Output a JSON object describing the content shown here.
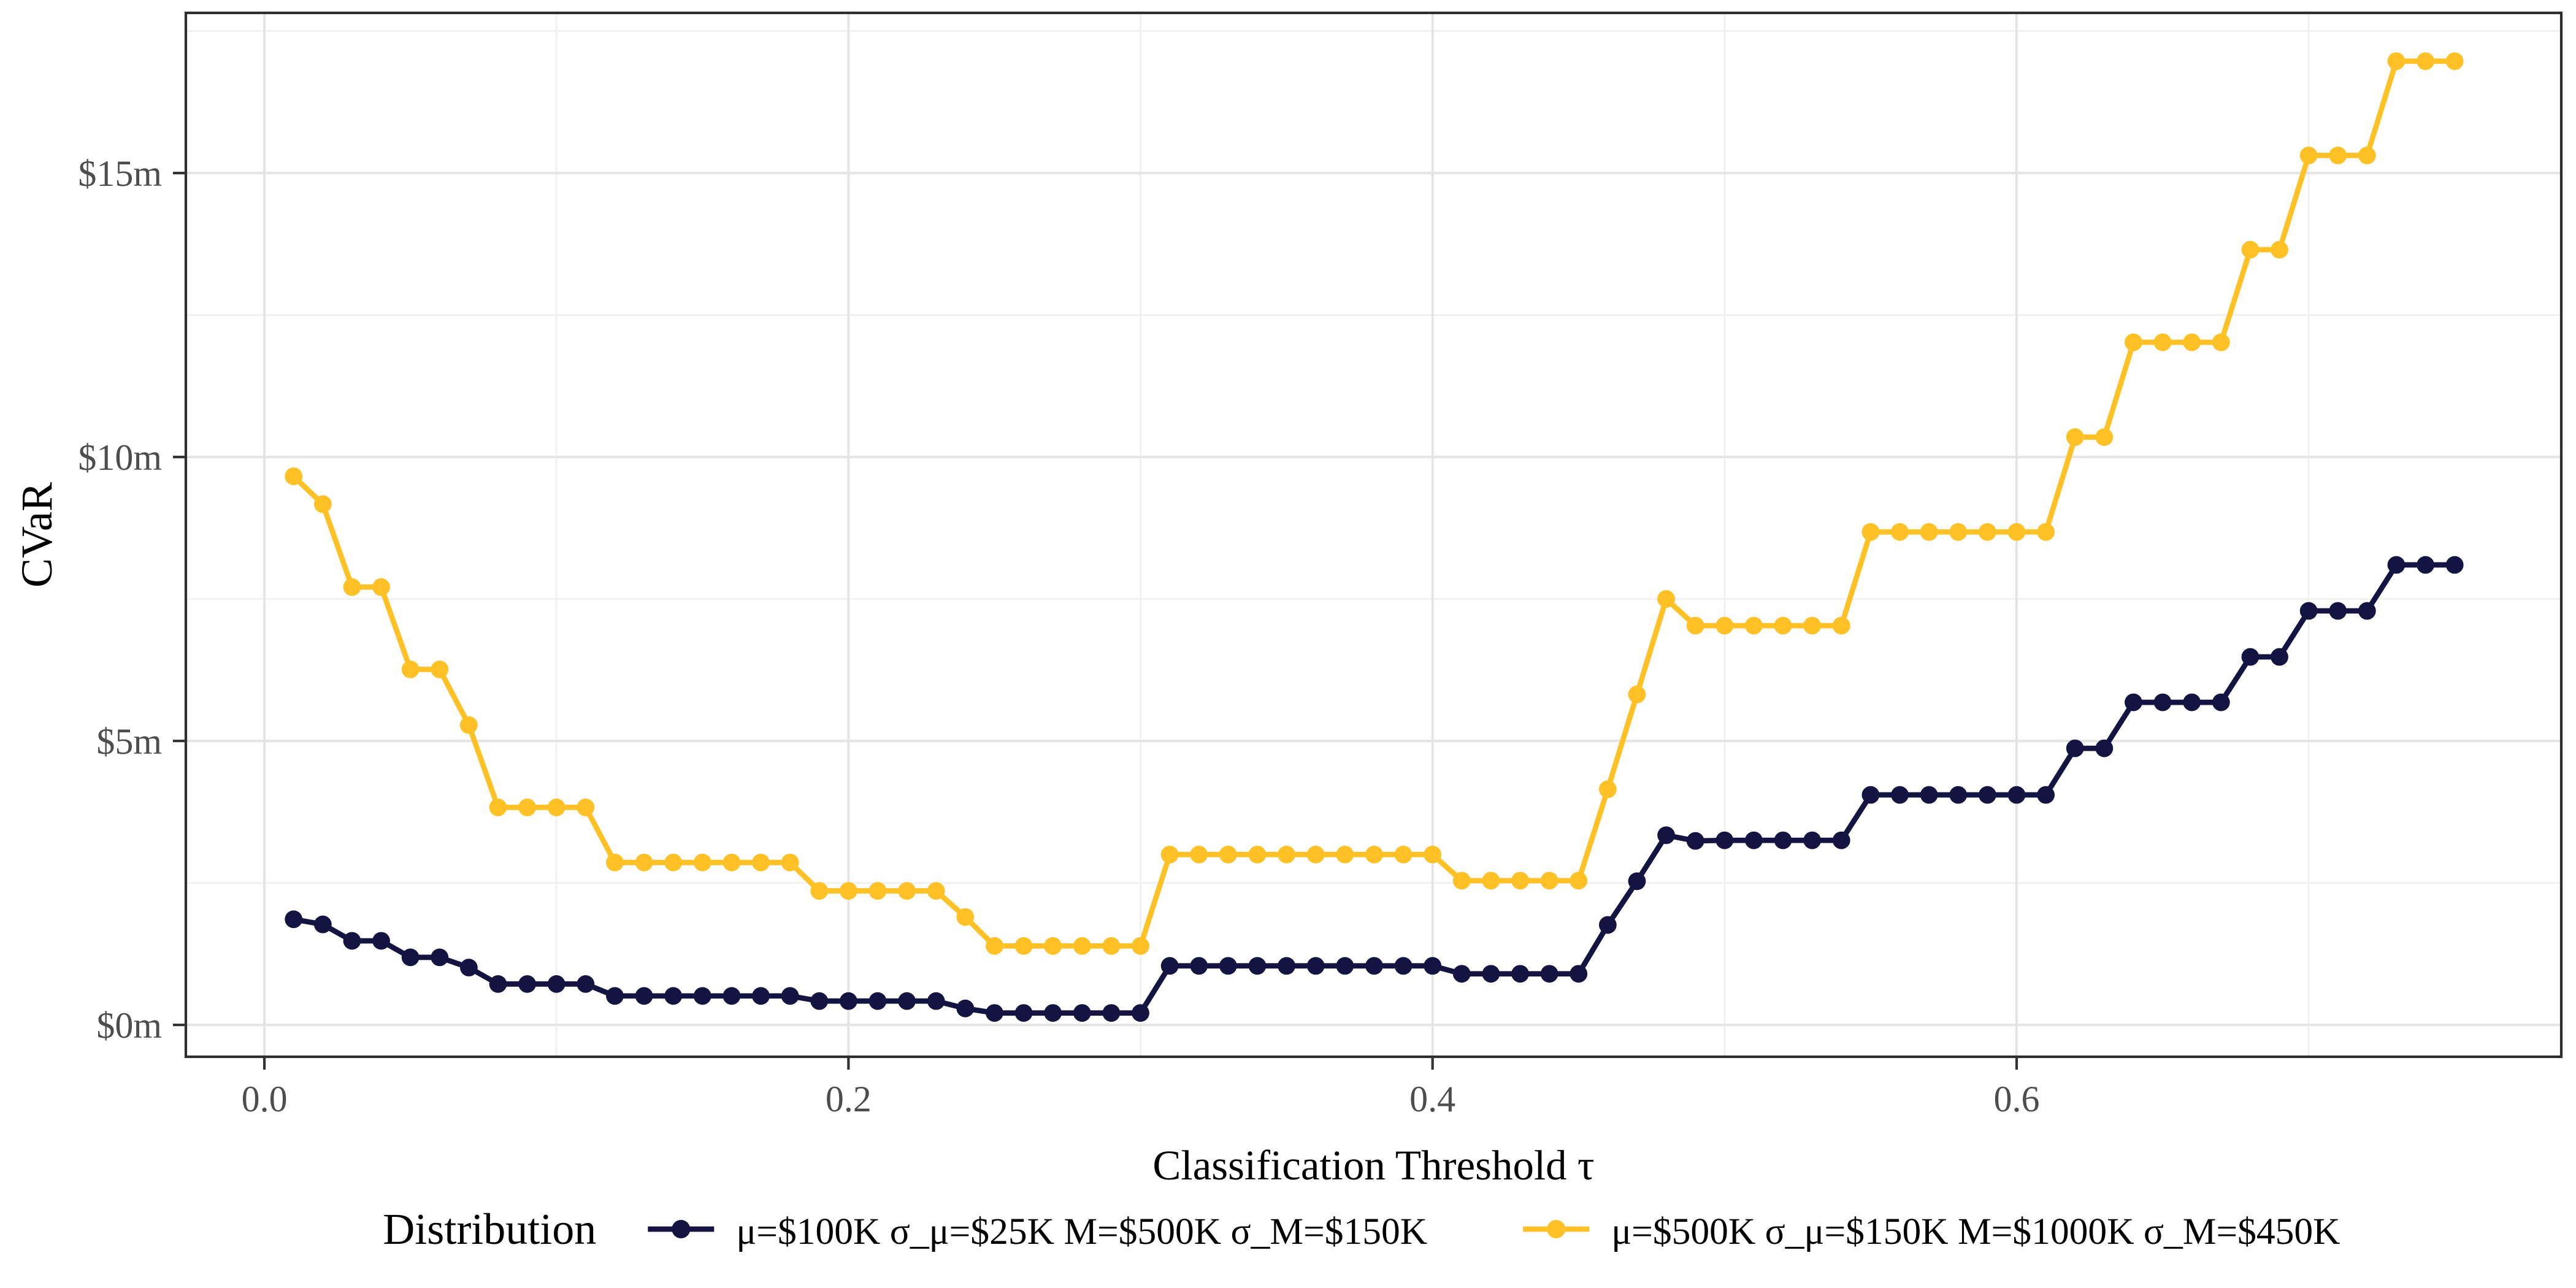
{
  "chart_data": {
    "type": "line",
    "title": "",
    "xlabel": "Classification Threshold τ",
    "ylabel": "CVaR",
    "x_tick_values": [
      0.0,
      0.2,
      0.4,
      0.6
    ],
    "x_tick_labels": [
      "0.0",
      "0.2",
      "0.4",
      "0.6"
    ],
    "x_minor_ticks": [
      0.1,
      0.3,
      0.5,
      0.7
    ],
    "y_tick_values": [
      0,
      5,
      10,
      15
    ],
    "y_tick_labels": [
      "$0m",
      "$5m",
      "$10m",
      "$15m"
    ],
    "y_minor_ticks": [
      2.5,
      7.5,
      12.5,
      17.5
    ],
    "xlim": [
      -0.0269,
      0.7865
    ],
    "ylim": [
      -0.561,
      17.82
    ],
    "grid": "on",
    "legend_position": "bottom",
    "legend_title": "Distribution",
    "x_step": 0.01,
    "x": [
      0.01,
      0.02,
      0.03,
      0.04,
      0.05,
      0.06,
      0.07,
      0.08,
      0.09,
      0.1,
      0.11,
      0.12,
      0.13,
      0.14,
      0.15,
      0.16,
      0.17,
      0.18,
      0.19,
      0.2,
      0.21,
      0.22,
      0.23,
      0.24,
      0.25,
      0.26,
      0.27,
      0.28,
      0.29,
      0.3,
      0.31,
      0.32,
      0.33,
      0.34,
      0.35,
      0.36,
      0.37,
      0.38,
      0.39,
      0.4,
      0.41,
      0.42,
      0.43,
      0.44,
      0.45,
      0.46,
      0.47,
      0.48,
      0.49,
      0.5,
      0.51,
      0.52,
      0.53,
      0.54,
      0.55,
      0.56,
      0.57,
      0.58,
      0.59,
      0.6,
      0.61,
      0.62,
      0.63,
      0.64,
      0.65,
      0.66,
      0.67,
      0.68,
      0.69,
      0.7,
      0.71,
      0.72,
      0.73,
      0.74,
      0.75
    ],
    "series": [
      {
        "name": "μ=$100K σ_μ=$25K M=$500K σ_M=$150K",
        "color": "#141442",
        "values": [
          1.86,
          1.77,
          1.48,
          1.48,
          1.19,
          1.19,
          1.01,
          0.72,
          0.72,
          0.72,
          0.72,
          0.51,
          0.51,
          0.51,
          0.51,
          0.51,
          0.51,
          0.51,
          0.42,
          0.42,
          0.42,
          0.42,
          0.42,
          0.29,
          0.21,
          0.21,
          0.21,
          0.21,
          0.21,
          0.21,
          1.04,
          1.04,
          1.04,
          1.04,
          1.04,
          1.04,
          1.04,
          1.04,
          1.04,
          1.04,
          0.9,
          0.9,
          0.9,
          0.9,
          0.9,
          1.76,
          2.53,
          3.34,
          3.24,
          3.25,
          3.25,
          3.25,
          3.25,
          3.25,
          4.05,
          4.05,
          4.05,
          4.05,
          4.05,
          4.05,
          4.05,
          4.87,
          4.87,
          5.68,
          5.68,
          5.68,
          5.68,
          6.48,
          6.48,
          7.29,
          7.29,
          7.29,
          8.1,
          8.1,
          8.1
        ]
      },
      {
        "name": "μ=$500K σ_μ=$150K M=$1000K σ_M=$450K",
        "color": "#FFC125",
        "values": [
          9.66,
          9.17,
          7.71,
          7.71,
          6.26,
          6.26,
          5.28,
          3.83,
          3.83,
          3.83,
          3.83,
          2.86,
          2.86,
          2.86,
          2.86,
          2.86,
          2.86,
          2.86,
          2.36,
          2.36,
          2.36,
          2.36,
          2.36,
          1.9,
          1.39,
          1.39,
          1.39,
          1.39,
          1.39,
          1.39,
          3.0,
          3.0,
          3.0,
          3.0,
          3.0,
          3.0,
          3.0,
          3.0,
          3.0,
          3.0,
          2.54,
          2.54,
          2.54,
          2.54,
          2.54,
          4.15,
          5.82,
          7.5,
          7.03,
          7.03,
          7.03,
          7.03,
          7.03,
          7.03,
          8.68,
          8.68,
          8.68,
          8.68,
          8.68,
          8.68,
          8.68,
          10.35,
          10.35,
          12.02,
          12.02,
          12.02,
          12.02,
          13.65,
          13.65,
          15.31,
          15.31,
          15.31,
          16.97,
          16.97,
          16.97
        ]
      }
    ],
    "style": {
      "grid_major_color": "#E4E4E4",
      "grid_minor_color": "#F0F0F0",
      "panel_border_color": "#2E2E2E",
      "tick_color": "#333333",
      "tick_label_color": "#4d4d4d",
      "background": "#FFFFFF"
    }
  }
}
